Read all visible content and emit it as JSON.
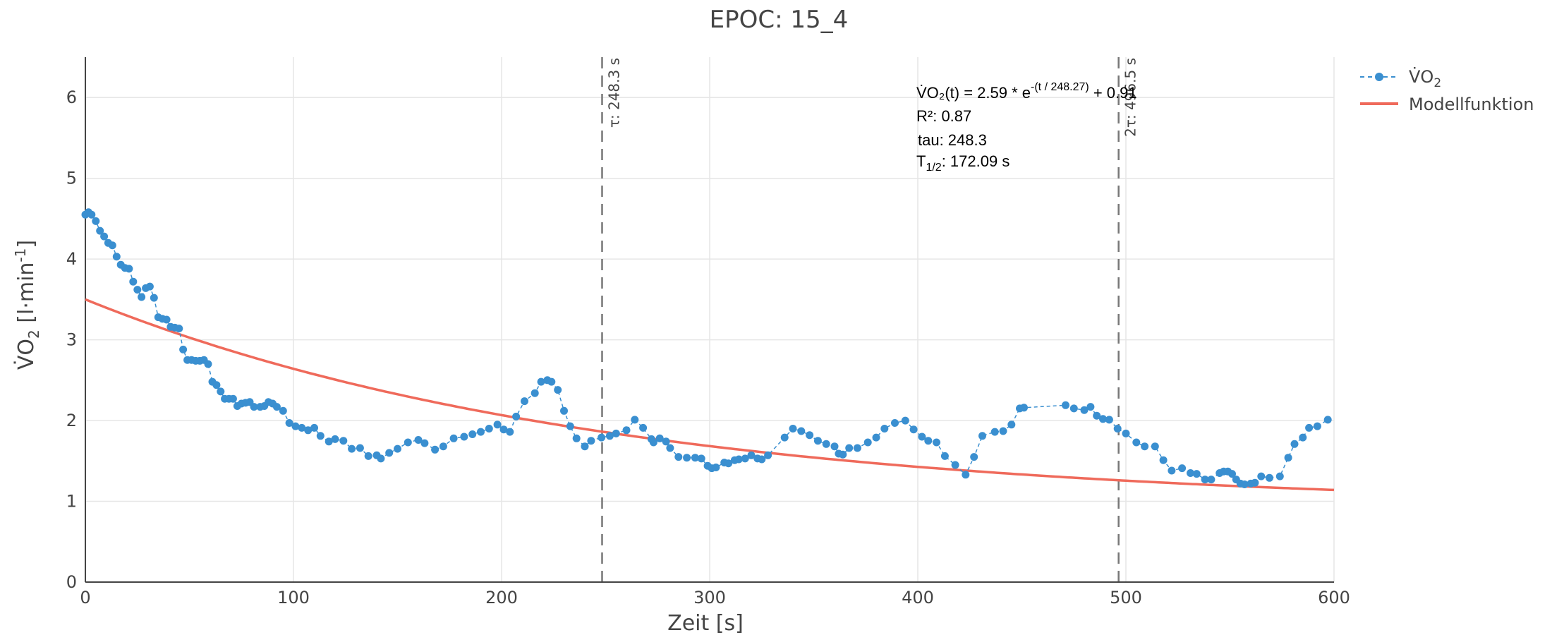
{
  "chart_data": {
    "type": "scatter",
    "title": "EPOC: 15_4",
    "xlabel": "Zeit [s]",
    "ylabel": {
      "base": "V̇O",
      "sub": "2",
      "unit_open": " [l·min",
      "sup": "-1",
      "unit_close": "]"
    },
    "xlim": [
      0,
      600
    ],
    "ylim": [
      0,
      6.5
    ],
    "x_ticks": [
      0,
      100,
      200,
      300,
      400,
      500,
      600
    ],
    "y_ticks": [
      0,
      1,
      2,
      3,
      4,
      5,
      6
    ],
    "grid": true,
    "legend": {
      "placement": "top-right",
      "items": [
        {
          "label": "V̇O",
          "sub": "2",
          "style": "dashed-markers",
          "color": "#3a8fd0"
        },
        {
          "label": "Modellfunktion",
          "style": "line",
          "color": "#ef6a5b"
        }
      ]
    },
    "series": [
      {
        "name": "V̇O2",
        "color": "#3a8fd0",
        "mode": "lines+markers",
        "points": [
          [
            0,
            4.55
          ],
          [
            1.5,
            4.58
          ],
          [
            3,
            4.55
          ],
          [
            5,
            4.47
          ],
          [
            7,
            4.35
          ],
          [
            9,
            4.28
          ],
          [
            11,
            4.2
          ],
          [
            13,
            4.17
          ],
          [
            15,
            4.03
          ],
          [
            17,
            3.93
          ],
          [
            19,
            3.89
          ],
          [
            21,
            3.88
          ],
          [
            23,
            3.72
          ],
          [
            25,
            3.62
          ],
          [
            27,
            3.53
          ],
          [
            29,
            3.64
          ],
          [
            31,
            3.66
          ],
          [
            33,
            3.52
          ],
          [
            35,
            3.28
          ],
          [
            37,
            3.26
          ],
          [
            39,
            3.25
          ],
          [
            41,
            3.16
          ],
          [
            43,
            3.15
          ],
          [
            45,
            3.14
          ],
          [
            47,
            2.88
          ],
          [
            49,
            2.75
          ],
          [
            51,
            2.75
          ],
          [
            53,
            2.74
          ],
          [
            55,
            2.74
          ],
          [
            57,
            2.75
          ],
          [
            59,
            2.7
          ],
          [
            61,
            2.48
          ],
          [
            63,
            2.44
          ],
          [
            65,
            2.36
          ],
          [
            67,
            2.27
          ],
          [
            69,
            2.27
          ],
          [
            71,
            2.27
          ],
          [
            73,
            2.18
          ],
          [
            75,
            2.21
          ],
          [
            77,
            2.22
          ],
          [
            79,
            2.23
          ],
          [
            81,
            2.17
          ],
          [
            84,
            2.17
          ],
          [
            86,
            2.18
          ],
          [
            88,
            2.23
          ],
          [
            90,
            2.21
          ],
          [
            92,
            2.17
          ],
          [
            95,
            2.12
          ],
          [
            98,
            1.97
          ],
          [
            101,
            1.93
          ],
          [
            104,
            1.91
          ],
          [
            107,
            1.88
          ],
          [
            110,
            1.91
          ],
          [
            113,
            1.81
          ],
          [
            117,
            1.74
          ],
          [
            120,
            1.77
          ],
          [
            124,
            1.75
          ],
          [
            128,
            1.65
          ],
          [
            132,
            1.66
          ],
          [
            136,
            1.56
          ],
          [
            140,
            1.57
          ],
          [
            142,
            1.53
          ],
          [
            146,
            1.6
          ],
          [
            150,
            1.65
          ],
          [
            155,
            1.73
          ],
          [
            160,
            1.76
          ],
          [
            163,
            1.72
          ],
          [
            168,
            1.64
          ],
          [
            172,
            1.68
          ],
          [
            177,
            1.78
          ],
          [
            182,
            1.8
          ],
          [
            186,
            1.83
          ],
          [
            190,
            1.86
          ],
          [
            194,
            1.9
          ],
          [
            198,
            1.95
          ],
          [
            201,
            1.89
          ],
          [
            204,
            1.86
          ],
          [
            207,
            2.05
          ],
          [
            211,
            2.24
          ],
          [
            216,
            2.34
          ],
          [
            219,
            2.48
          ],
          [
            222,
            2.5
          ],
          [
            224,
            2.48
          ],
          [
            227,
            2.38
          ],
          [
            230,
            2.12
          ],
          [
            233,
            1.93
          ],
          [
            236,
            1.78
          ],
          [
            240,
            1.68
          ],
          [
            243,
            1.75
          ],
          [
            248,
            1.79
          ],
          [
            252,
            1.81
          ],
          [
            255,
            1.84
          ],
          [
            260,
            1.88
          ],
          [
            264,
            2.01
          ],
          [
            268,
            1.91
          ],
          [
            272,
            1.77
          ],
          [
            273,
            1.73
          ],
          [
            276,
            1.78
          ],
          [
            279,
            1.74
          ],
          [
            281,
            1.66
          ],
          [
            285,
            1.55
          ],
          [
            289,
            1.54
          ],
          [
            293,
            1.54
          ],
          [
            296,
            1.53
          ],
          [
            299,
            1.44
          ],
          [
            301,
            1.41
          ],
          [
            303,
            1.42
          ],
          [
            307,
            1.48
          ],
          [
            309,
            1.47
          ],
          [
            312,
            1.51
          ],
          [
            314,
            1.52
          ],
          [
            317,
            1.53
          ],
          [
            320,
            1.57
          ],
          [
            323,
            1.53
          ],
          [
            325,
            1.52
          ],
          [
            328,
            1.57
          ],
          [
            336,
            1.79
          ],
          [
            340,
            1.9
          ],
          [
            344,
            1.87
          ],
          [
            348,
            1.82
          ],
          [
            352,
            1.75
          ],
          [
            356,
            1.71
          ],
          [
            360,
            1.68
          ],
          [
            362,
            1.59
          ],
          [
            364,
            1.58
          ],
          [
            367,
            1.66
          ],
          [
            371,
            1.66
          ],
          [
            376,
            1.73
          ],
          [
            380,
            1.79
          ],
          [
            384,
            1.9
          ],
          [
            389,
            1.97
          ],
          [
            394,
            2.0
          ],
          [
            398,
            1.89
          ],
          [
            402,
            1.8
          ],
          [
            405,
            1.75
          ],
          [
            409,
            1.73
          ],
          [
            413,
            1.56
          ],
          [
            418,
            1.45
          ],
          [
            423,
            1.33
          ],
          [
            427,
            1.55
          ],
          [
            431,
            1.81
          ],
          [
            437,
            1.86
          ],
          [
            441,
            1.87
          ],
          [
            445,
            1.95
          ],
          [
            449,
            2.15
          ],
          [
            451,
            2.16
          ],
          [
            471,
            2.19
          ],
          [
            475,
            2.15
          ],
          [
            480,
            2.13
          ],
          [
            483,
            2.17
          ],
          [
            486,
            2.06
          ],
          [
            489,
            2.02
          ],
          [
            492,
            2.01
          ],
          [
            496,
            1.9
          ],
          [
            500,
            1.84
          ],
          [
            505,
            1.73
          ],
          [
            509,
            1.68
          ],
          [
            514,
            1.68
          ],
          [
            518,
            1.51
          ],
          [
            522,
            1.38
          ],
          [
            527,
            1.41
          ],
          [
            531,
            1.35
          ],
          [
            534,
            1.34
          ],
          [
            538,
            1.27
          ],
          [
            541,
            1.27
          ],
          [
            545,
            1.35
          ],
          [
            547,
            1.37
          ],
          [
            549,
            1.37
          ],
          [
            551,
            1.34
          ],
          [
            553,
            1.27
          ],
          [
            555,
            1.22
          ],
          [
            557,
            1.21
          ],
          [
            560,
            1.22
          ],
          [
            562,
            1.23
          ],
          [
            565,
            1.31
          ],
          [
            569,
            1.29
          ],
          [
            574,
            1.31
          ],
          [
            578,
            1.54
          ],
          [
            581,
            1.71
          ],
          [
            585,
            1.79
          ],
          [
            588,
            1.91
          ],
          [
            592,
            1.93
          ],
          [
            597,
            2.01
          ]
        ]
      },
      {
        "name": "Modellfunktion",
        "color": "#ef6a5b",
        "mode": "lines",
        "function": {
          "a": 2.59,
          "tau": 248.27,
          "c": 0.91
        }
      }
    ],
    "vlines": [
      {
        "x": 248.3,
        "label": "τ: 248.3 s"
      },
      {
        "x": 496.5,
        "label": "2τ: 496.5 s"
      }
    ],
    "annotations": {
      "equation_main": "V̇O₂(t) = 2.59 * e",
      "equation_exponent": "-(t / 248.27)",
      "equation_tail": " + 0.91",
      "r2": "R²: 0.87",
      "tau": "tau: 248.3",
      "half_label": "T",
      "half_sub": "1/2",
      "half_value": ": 172.09 s"
    }
  }
}
